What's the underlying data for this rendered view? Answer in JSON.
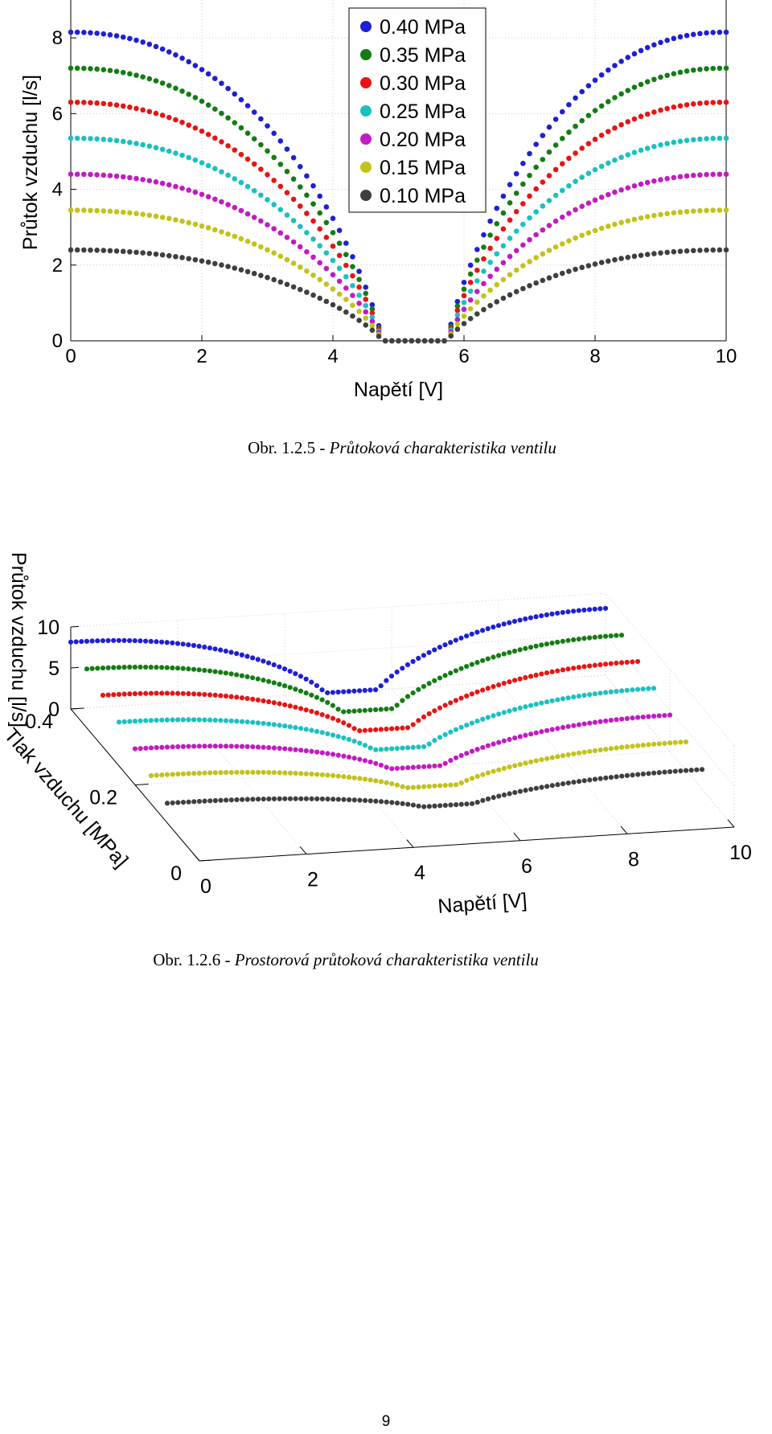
{
  "chart_data": [
    {
      "type": "scatter",
      "title": "",
      "xlabel": "Napětí [V]",
      "ylabel": "Průtok vzduchu [l/s]",
      "xlim": [
        0,
        10
      ],
      "ylim": [
        0,
        9
      ],
      "xticks": [
        "0",
        "2",
        "4",
        "6",
        "8",
        "10"
      ],
      "yticks": [
        "0",
        "2",
        "4",
        "6",
        "8"
      ],
      "grid": true,
      "legend_position": "top-center",
      "series": [
        {
          "name": "0.40 MPa",
          "pressure": 0.4,
          "max_flow": 8.15,
          "color": "#1f1fd6"
        },
        {
          "name": "0.35 MPa",
          "pressure": 0.35,
          "max_flow": 7.2,
          "color": "#137d13"
        },
        {
          "name": "0.30 MPa",
          "pressure": 0.3,
          "max_flow": 6.3,
          "color": "#e81414"
        },
        {
          "name": "0.25 MPa",
          "pressure": 0.25,
          "max_flow": 5.35,
          "color": "#1cc0c0"
        },
        {
          "name": "0.20 MPa",
          "pressure": 0.2,
          "max_flow": 4.4,
          "color": "#c21bc2"
        },
        {
          "name": "0.15 MPa",
          "pressure": 0.15,
          "max_flow": 3.45,
          "color": "#c2c21b"
        },
        {
          "name": "0.10 MPa",
          "pressure": 0.1,
          "max_flow": 2.4,
          "color": "#3f3f3f"
        }
      ]
    },
    {
      "type": "scatter3d",
      "title": "",
      "xlabel": "Napětí [V]",
      "ylabel": "Tlak vzduchu [MPa]",
      "zlabel": "Průtok vzduchu [l/s]",
      "xlim": [
        0,
        10
      ],
      "ylim": [
        0,
        0.4
      ],
      "zlim": [
        0,
        10
      ],
      "xticks": [
        "0",
        "2",
        "4",
        "6",
        "8",
        "10"
      ],
      "yticks": [
        "0",
        "0.2",
        "0.4"
      ],
      "zticks": [
        "0",
        "5",
        "10"
      ],
      "grid": true
    }
  ],
  "captions": {
    "fig1_prefix": "Obr. 1.2.5 - ",
    "fig1_text": "Průtoková charakteristika ventilu",
    "fig2_prefix": "Obr. 1.2.6 - ",
    "fig2_text": "Prostorová průtoková charakteristika ventilu"
  },
  "page_number": "9"
}
